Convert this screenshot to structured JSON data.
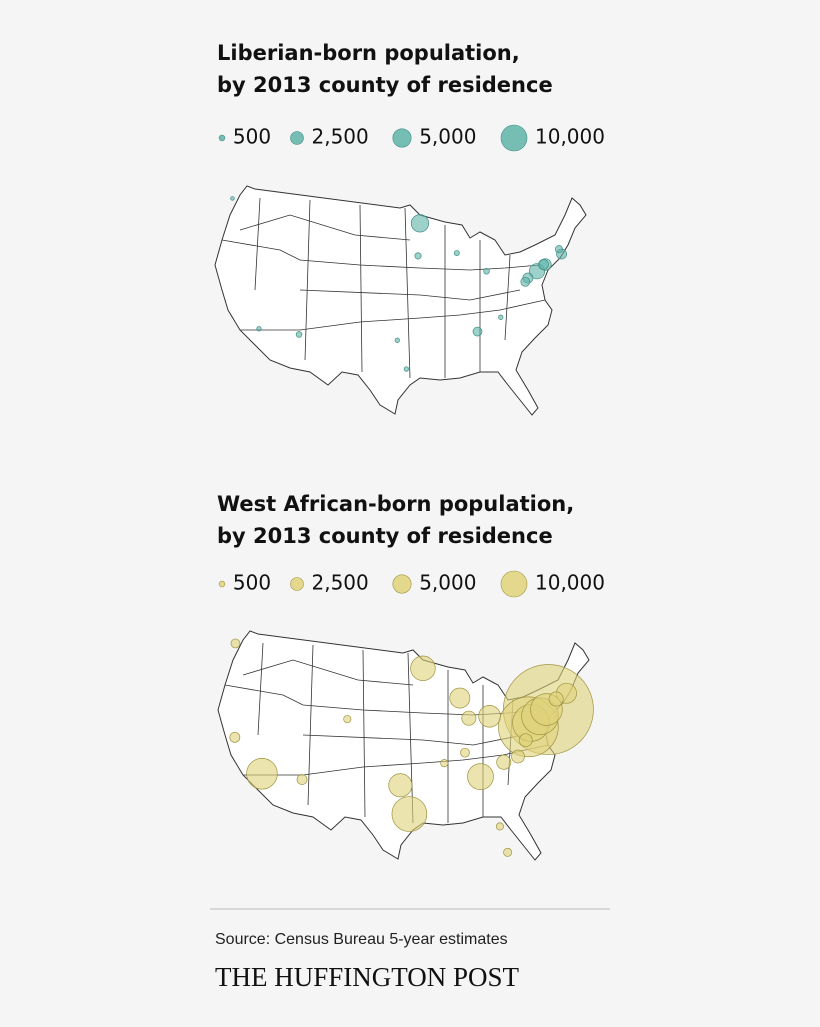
{
  "maps": [
    {
      "title_lines": [
        "Liberian-born population,",
        "by 2013 county of residence"
      ],
      "legend": [
        500,
        {
          "value": 2500,
          "label": "2,500"
        },
        {
          "value": 5000,
          "label": "5,000"
        },
        {
          "value": 10000,
          "label": "10,000"
        }
      ],
      "color": "#5fb3a8",
      "points": [
        {
          "lon": -93.3,
          "lat": 45.0,
          "value": 4500
        },
        {
          "lon": -75.2,
          "lat": 40.0,
          "value": 3500
        },
        {
          "lon": -73.9,
          "lat": 40.7,
          "value": 2000
        },
        {
          "lon": -71.4,
          "lat": 41.8,
          "value": 1500
        },
        {
          "lon": -76.6,
          "lat": 39.3,
          "value": 1500
        },
        {
          "lon": -77.0,
          "lat": 38.9,
          "value": 1200
        },
        {
          "lon": -84.4,
          "lat": 33.7,
          "value": 1200
        },
        {
          "lon": -112.0,
          "lat": 33.4,
          "value": 500
        },
        {
          "lon": -83.0,
          "lat": 40.0,
          "value": 500
        },
        {
          "lon": -87.6,
          "lat": 41.9,
          "value": 400
        },
        {
          "lon": -95.4,
          "lat": 29.8,
          "value": 300
        },
        {
          "lon": -96.8,
          "lat": 32.8,
          "value": 300
        },
        {
          "lon": -80.8,
          "lat": 35.2,
          "value": 300
        },
        {
          "lon": -122.3,
          "lat": 47.6,
          "value": 200
        },
        {
          "lon": -118.2,
          "lat": 34.0,
          "value": 300
        },
        {
          "lon": -93.6,
          "lat": 41.6,
          "value": 600
        },
        {
          "lon": -71.8,
          "lat": 42.3,
          "value": 800
        },
        {
          "lon": -74.2,
          "lat": 40.7,
          "value": 1500
        }
      ]
    },
    {
      "title_lines": [
        "West African-born population,",
        "by 2013 county of residence"
      ],
      "legend": [
        500,
        {
          "value": 2500,
          "label": "2,500"
        },
        {
          "value": 5000,
          "label": "5,000"
        },
        {
          "value": 10000,
          "label": "10,000"
        }
      ],
      "color": "#e0d27a",
      "points": [
        {
          "lon": -73.9,
          "lat": 40.7,
          "value": 120000
        },
        {
          "lon": -77.0,
          "lat": 38.9,
          "value": 53000
        },
        {
          "lon": -76.6,
          "lat": 39.3,
          "value": 20000
        },
        {
          "lon": -75.2,
          "lat": 40.0,
          "value": 20000
        },
        {
          "lon": -71.1,
          "lat": 42.4,
          "value": 6000
        },
        {
          "lon": -93.3,
          "lat": 45.0,
          "value": 9000
        },
        {
          "lon": -87.6,
          "lat": 41.9,
          "value": 6000
        },
        {
          "lon": -83.0,
          "lat": 40.0,
          "value": 7000
        },
        {
          "lon": -86.2,
          "lat": 39.8,
          "value": 3000
        },
        {
          "lon": -84.4,
          "lat": 33.7,
          "value": 10000
        },
        {
          "lon": -95.4,
          "lat": 29.8,
          "value": 18000
        },
        {
          "lon": -96.8,
          "lat": 32.8,
          "value": 8000
        },
        {
          "lon": -118.2,
          "lat": 34.0,
          "value": 14000
        },
        {
          "lon": -112.0,
          "lat": 33.4,
          "value": 1500
        },
        {
          "lon": -105.0,
          "lat": 39.7,
          "value": 800
        },
        {
          "lon": -122.3,
          "lat": 47.6,
          "value": 1200
        },
        {
          "lon": -122.4,
          "lat": 37.8,
          "value": 1500
        },
        {
          "lon": -80.8,
          "lat": 35.2,
          "value": 3000
        },
        {
          "lon": -78.6,
          "lat": 35.8,
          "value": 2500
        },
        {
          "lon": -80.2,
          "lat": 25.8,
          "value": 1000
        },
        {
          "lon": -81.4,
          "lat": 28.5,
          "value": 800
        },
        {
          "lon": -74.2,
          "lat": 40.7,
          "value": 15000
        },
        {
          "lon": -72.7,
          "lat": 41.8,
          "value": 3000
        },
        {
          "lon": -77.4,
          "lat": 37.5,
          "value": 2500
        },
        {
          "lon": -90.0,
          "lat": 35.1,
          "value": 800
        },
        {
          "lon": -86.8,
          "lat": 36.2,
          "value": 1200
        }
      ]
    }
  ],
  "source": "Source: Census Bureau 5-year estimates",
  "brand": "THE HUFFINGTON POST"
}
